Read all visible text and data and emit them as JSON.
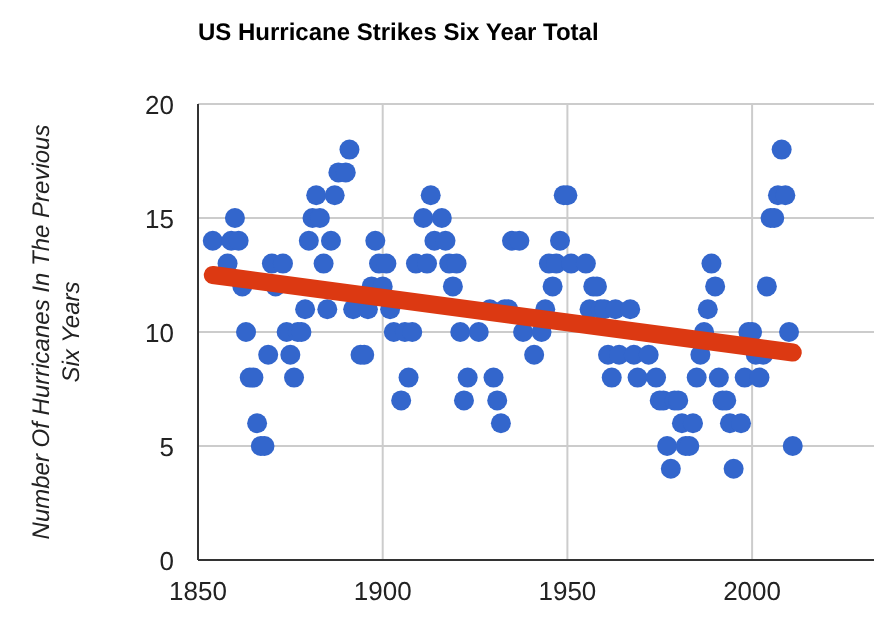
{
  "chart_data": {
    "type": "scatter",
    "title": "US Hurricane Strikes Six Year Total",
    "ylabel": "Number Of Hurricanes In The Previous Six Years",
    "xlim": [
      1850,
      2033
    ],
    "xticks": [
      1850,
      1900,
      1950,
      2000
    ],
    "ylim": [
      0,
      20
    ],
    "yticks": [
      0,
      5,
      10,
      15,
      20
    ],
    "grid": true,
    "series": [
      {
        "color": "#3366cc",
        "marker": "circle",
        "x": [
          1854,
          1858,
          1859,
          1860,
          1861,
          1862,
          1863,
          1864,
          1865,
          1866,
          1867,
          1868,
          1869,
          1870,
          1871,
          1873,
          1874,
          1875,
          1876,
          1877,
          1878,
          1879,
          1880,
          1881,
          1882,
          1883,
          1884,
          1885,
          1886,
          1887,
          1888,
          1890,
          1891,
          1892,
          1894,
          1895,
          1896,
          1897,
          1898,
          1899,
          1900,
          1901,
          1902,
          1903,
          1905,
          1906,
          1907,
          1908,
          1909,
          1911,
          1912,
          1913,
          1914,
          1916,
          1917,
          1918,
          1919,
          1920,
          1921,
          1922,
          1923,
          1926,
          1929,
          1930,
          1931,
          1932,
          1933,
          1934,
          1935,
          1937,
          1938,
          1941,
          1943,
          1944,
          1945,
          1946,
          1947,
          1948,
          1949,
          1950,
          1951,
          1955,
          1956,
          1957,
          1958,
          1959,
          1960,
          1961,
          1962,
          1963,
          1964,
          1967,
          1968,
          1969,
          1972,
          1974,
          1975,
          1976,
          1977,
          1978,
          1979,
          1980,
          1981,
          1982,
          1983,
          1984,
          1985,
          1986,
          1987,
          1988,
          1989,
          1990,
          1991,
          1992,
          1993,
          1994,
          1995,
          1997,
          1998,
          1999,
          2000,
          2001,
          2002,
          2003,
          2004,
          2005,
          2006,
          2007,
          2008,
          2009,
          2010,
          2011
        ],
        "values": [
          14,
          13,
          14,
          15,
          14,
          12,
          10,
          8,
          8,
          6,
          5,
          5,
          9,
          13,
          12,
          13,
          10,
          9,
          8,
          10,
          10,
          11,
          14,
          15,
          16,
          15,
          13,
          11,
          14,
          16,
          17,
          17,
          18,
          11,
          9,
          9,
          11,
          12,
          14,
          13,
          12,
          13,
          11,
          10,
          7,
          10,
          8,
          10,
          13,
          15,
          13,
          16,
          14,
          15,
          14,
          13,
          12,
          13,
          10,
          7,
          8,
          10,
          11,
          8,
          7,
          6,
          11,
          11,
          14,
          14,
          10,
          9,
          10,
          11,
          13,
          12,
          13,
          14,
          16,
          16,
          13,
          13,
          11,
          12,
          12,
          11,
          11,
          9,
          8,
          11,
          9,
          11,
          9,
          8,
          9,
          8,
          7,
          7,
          5,
          4,
          7,
          7,
          6,
          5,
          5,
          6,
          8,
          9,
          10,
          11,
          13,
          12,
          8,
          7,
          7,
          6,
          4,
          6,
          8,
          10,
          10,
          9,
          8,
          9,
          12,
          15,
          15,
          16,
          18,
          16,
          10,
          5
        ]
      },
      {
        "type": "line",
        "color": "#dc3912",
        "x": [
          1854,
          2011
        ],
        "values": [
          12.5,
          9.1
        ]
      }
    ]
  }
}
